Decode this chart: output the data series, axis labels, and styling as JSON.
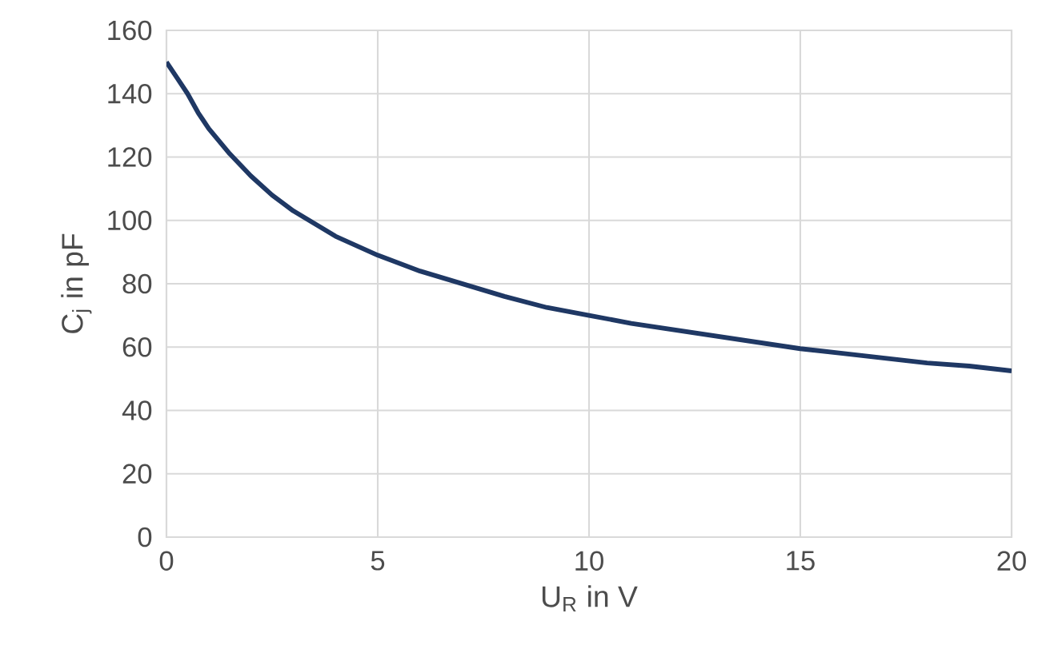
{
  "chart_data": {
    "type": "line",
    "xlabel": "U$_{R}$ in V",
    "ylabel": "C$_{j}$ in pF",
    "x": [
      0,
      0.25,
      0.5,
      0.75,
      1,
      1.5,
      2,
      2.5,
      3,
      3.5,
      4,
      5,
      6,
      7,
      8,
      9,
      10,
      11,
      12,
      13,
      14,
      15,
      16,
      17,
      18,
      19,
      20
    ],
    "values": [
      150,
      145,
      140,
      134,
      129,
      121,
      114,
      108,
      103,
      99,
      95,
      89,
      84,
      80,
      76,
      72.5,
      70,
      67.5,
      65.5,
      63.5,
      61.5,
      59.5,
      58,
      56.5,
      55,
      54,
      52.5
    ],
    "color": "#1f3864",
    "line_style": "solid",
    "marker": "none",
    "xlim": [
      0,
      20
    ],
    "ylim": [
      0,
      160
    ],
    "xticks": [
      0,
      5,
      10,
      15,
      20
    ],
    "yticks": [
      0,
      20,
      40,
      60,
      80,
      100,
      120,
      140,
      160
    ],
    "grid": true
  }
}
